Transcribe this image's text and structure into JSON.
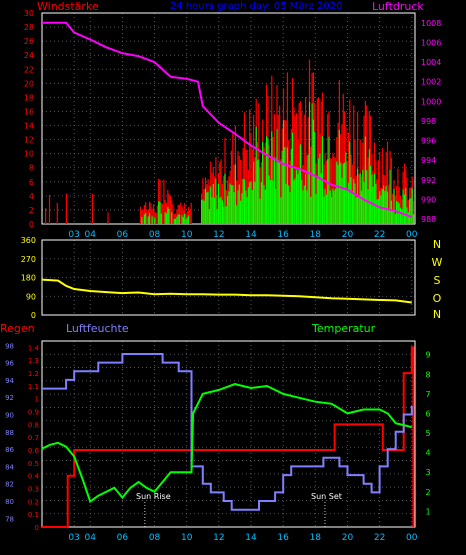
{
  "colors": {
    "background": "#000000",
    "grid": "#6a6a6a",
    "frame": "#ffffff",
    "wind": "#ff0000",
    "gust": "#ff0000",
    "wind_avg": "#00ff00",
    "pressure": "#ff00ff",
    "direction": "#ffff00",
    "rain": "#ff0000",
    "humidity": "#8080ff",
    "temperature": "#00ff00",
    "title": "#0000ff",
    "axis_left_top": "#ff0000",
    "axis_right_top": "#ff00ff",
    "axis_dir": "#ffff00",
    "axis_rain": "#ff0000",
    "axis_hum": "#8080ff",
    "axis_temp": "#00ff00",
    "time_labels": "#00bfff",
    "sun_labels": "#ffffff"
  },
  "chart_data": [
    {
      "type": "bar",
      "title": "24 hours graph day: 05 März 2020",
      "left_label": "Windstärke",
      "right_label": "Luftdruck",
      "x_ticks": [
        "03",
        "04",
        "06",
        "08",
        "10",
        "12",
        "14",
        "16",
        "18",
        "20",
        "22",
        "00"
      ],
      "x_tick_hours": [
        3,
        4,
        6,
        8,
        10,
        12,
        14,
        16,
        18,
        20,
        22,
        24
      ],
      "x_range_hours": [
        1,
        24.2
      ],
      "y_left_ticks": [
        "0",
        "2",
        "4",
        "6",
        "8",
        "10",
        "12",
        "14",
        "16",
        "18",
        "20",
        "22",
        "24",
        "26",
        "28",
        "30"
      ],
      "y_left_range": [
        0,
        30
      ],
      "y_right_ticks": [
        "988",
        "990",
        "992",
        "994",
        "996",
        "998",
        "1000",
        "1002",
        "1004",
        "1006",
        "1008"
      ],
      "y_right_range": [
        987.5,
        1009
      ],
      "series": [
        {
          "name": "Luftdruck",
          "kind": "line",
          "points": [
            [
              1.0,
              1008.0
            ],
            [
              2.5,
              1008.0
            ],
            [
              3.0,
              1007.0
            ],
            [
              4.0,
              1006.3
            ],
            [
              5.0,
              1005.5
            ],
            [
              6.0,
              1004.9
            ],
            [
              7.0,
              1004.6
            ],
            [
              8.0,
              1004.0
            ],
            [
              9.0,
              1002.5
            ],
            [
              10.0,
              1002.3
            ],
            [
              10.7,
              1002.0
            ],
            [
              11.0,
              999.5
            ],
            [
              12.0,
              997.8
            ],
            [
              13.0,
              996.7
            ],
            [
              14.0,
              995.5
            ],
            [
              15.0,
              994.5
            ],
            [
              16.0,
              993.6
            ],
            [
              17.0,
              993.1
            ],
            [
              18.0,
              992.4
            ],
            [
              19.0,
              991.5
            ],
            [
              20.0,
              991.0
            ],
            [
              21.0,
              990.0
            ],
            [
              22.0,
              989.2
            ],
            [
              23.0,
              988.8
            ],
            [
              24.0,
              988.2
            ]
          ]
        }
      ]
    },
    {
      "type": "line",
      "right_labels": [
        "N",
        "W",
        "S",
        "O",
        "N"
      ],
      "x_range_hours": [
        1,
        24.2
      ],
      "y_ticks": [
        "0",
        "90",
        "180",
        "270",
        "360"
      ],
      "y_range": [
        0,
        360
      ],
      "series": [
        {
          "name": "Windrichtung",
          "points": [
            [
              1.0,
              170
            ],
            [
              2.0,
              165
            ],
            [
              2.5,
              140
            ],
            [
              3.0,
              125
            ],
            [
              4.0,
              115
            ],
            [
              5.0,
              110
            ],
            [
              6.0,
              105
            ],
            [
              7.0,
              108
            ],
            [
              8.0,
              100
            ],
            [
              9.0,
              102
            ],
            [
              10.0,
              100
            ],
            [
              11.0,
              100
            ],
            [
              12.0,
              98
            ],
            [
              13.0,
              98
            ],
            [
              14.0,
              95
            ],
            [
              15.0,
              95
            ],
            [
              16.0,
              92
            ],
            [
              17.0,
              90
            ],
            [
              18.0,
              85
            ],
            [
              19.0,
              80
            ],
            [
              20.0,
              78
            ],
            [
              21.0,
              75
            ],
            [
              22.0,
              72
            ],
            [
              23.0,
              70
            ],
            [
              24.0,
              60
            ]
          ]
        }
      ]
    },
    {
      "type": "line",
      "labels": {
        "rain": "Regen",
        "humidity": "Luftfeuchte",
        "temperature": "Temperatur"
      },
      "annotations": {
        "sunrise": "Sun Rise",
        "sunset": "Sun Set"
      },
      "sunrise_hour": 7.4,
      "sunset_hour": 18.6,
      "x_ticks": [
        "03",
        "04",
        "06",
        "08",
        "10",
        "12",
        "14",
        "16",
        "18",
        "20",
        "22",
        "00"
      ],
      "x_tick_hours": [
        3,
        4,
        6,
        8,
        10,
        12,
        14,
        16,
        18,
        20,
        22,
        24
      ],
      "x_range_hours": [
        1,
        24.2
      ],
      "y_hum_ticks": [
        "78",
        "80",
        "82",
        "84",
        "86",
        "88",
        "90",
        "92",
        "94",
        "96",
        "98"
      ],
      "y_hum_range": [
        77,
        98.5
      ],
      "y_rain_ticks": [
        "0",
        "0.1",
        "0.2",
        "0.3",
        "0.4",
        "0.5",
        "0.6",
        "0.7",
        "0.8",
        "0.9",
        "1",
        "1.1",
        "1.2",
        "1.3",
        "1.4"
      ],
      "y_rain_range": [
        0,
        1.45
      ],
      "y_temp_ticks": [
        "1",
        "2",
        "3",
        "4",
        "5",
        "6",
        "7",
        "8",
        "9"
      ],
      "y_temp_range": [
        0.2,
        9.7
      ],
      "series": [
        {
          "name": "Regen",
          "kind": "step",
          "points": [
            [
              1.0,
              0.0
            ],
            [
              2.6,
              0.0
            ],
            [
              2.6,
              0.4
            ],
            [
              3.0,
              0.4
            ],
            [
              3.0,
              0.6
            ],
            [
              19.2,
              0.6
            ],
            [
              19.2,
              0.8
            ],
            [
              22.2,
              0.8
            ],
            [
              22.2,
              0.6
            ],
            [
              23.5,
              0.6
            ],
            [
              23.5,
              1.2
            ],
            [
              24.0,
              1.2
            ],
            [
              24.0,
              1.4
            ],
            [
              24.1,
              1.4
            ],
            [
              24.1,
              0.0
            ]
          ]
        },
        {
          "name": "Luftfeuchte",
          "kind": "step",
          "points": [
            [
              1.0,
              93.0
            ],
            [
              2.5,
              93.0
            ],
            [
              2.5,
              94.0
            ],
            [
              3.0,
              94.0
            ],
            [
              3.0,
              95.0
            ],
            [
              4.5,
              95.0
            ],
            [
              4.5,
              96.0
            ],
            [
              6.0,
              96.0
            ],
            [
              6.0,
              97.0
            ],
            [
              8.5,
              97.0
            ],
            [
              8.5,
              96.0
            ],
            [
              9.5,
              96.0
            ],
            [
              9.5,
              95.0
            ],
            [
              10.3,
              95.0
            ],
            [
              10.3,
              84.0
            ],
            [
              11.0,
              84.0
            ],
            [
              11.0,
              82.0
            ],
            [
              11.5,
              82.0
            ],
            [
              11.5,
              81.0
            ],
            [
              12.3,
              81.0
            ],
            [
              12.3,
              80.0
            ],
            [
              12.8,
              80.0
            ],
            [
              12.8,
              79.0
            ],
            [
              14.5,
              79.0
            ],
            [
              14.5,
              80.0
            ],
            [
              15.5,
              80.0
            ],
            [
              15.5,
              81.0
            ],
            [
              16.0,
              81.0
            ],
            [
              16.0,
              83.0
            ],
            [
              16.5,
              83.0
            ],
            [
              16.5,
              84.0
            ],
            [
              18.5,
              84.0
            ],
            [
              18.5,
              85.0
            ],
            [
              19.5,
              85.0
            ],
            [
              19.5,
              84.0
            ],
            [
              20.0,
              84.0
            ],
            [
              20.0,
              83.0
            ],
            [
              21.0,
              83.0
            ],
            [
              21.0,
              82.0
            ],
            [
              21.5,
              82.0
            ],
            [
              21.5,
              81.0
            ],
            [
              22.0,
              81.0
            ],
            [
              22.0,
              84.0
            ],
            [
              22.5,
              84.0
            ],
            [
              22.5,
              86.0
            ],
            [
              23.0,
              86.0
            ],
            [
              23.0,
              88.0
            ],
            [
              23.5,
              88.0
            ],
            [
              23.5,
              90.0
            ],
            [
              24.0,
              90.0
            ],
            [
              24.0,
              91.0
            ]
          ]
        },
        {
          "name": "Temperatur",
          "kind": "line",
          "points": [
            [
              1.0,
              4.2
            ],
            [
              1.5,
              4.4
            ],
            [
              2.0,
              4.5
            ],
            [
              2.5,
              4.3
            ],
            [
              3.0,
              3.8
            ],
            [
              3.5,
              2.7
            ],
            [
              4.0,
              1.5
            ],
            [
              4.5,
              1.8
            ],
            [
              5.0,
              2.0
            ],
            [
              5.5,
              2.2
            ],
            [
              6.0,
              1.7
            ],
            [
              6.5,
              2.2
            ],
            [
              7.0,
              2.5
            ],
            [
              7.5,
              2.2
            ],
            [
              8.0,
              2.0
            ],
            [
              9.0,
              3.0
            ],
            [
              10.0,
              3.0
            ],
            [
              10.3,
              3.0
            ],
            [
              10.4,
              6.0
            ],
            [
              11.0,
              7.0
            ],
            [
              12.0,
              7.2
            ],
            [
              13.0,
              7.5
            ],
            [
              14.0,
              7.3
            ],
            [
              15.0,
              7.4
            ],
            [
              16.0,
              7.0
            ],
            [
              17.0,
              6.8
            ],
            [
              18.0,
              6.6
            ],
            [
              19.0,
              6.5
            ],
            [
              20.0,
              6.0
            ],
            [
              21.0,
              6.2
            ],
            [
              22.0,
              6.2
            ],
            [
              22.5,
              6.0
            ],
            [
              23.0,
              5.5
            ],
            [
              24.0,
              5.3
            ]
          ]
        }
      ]
    }
  ]
}
